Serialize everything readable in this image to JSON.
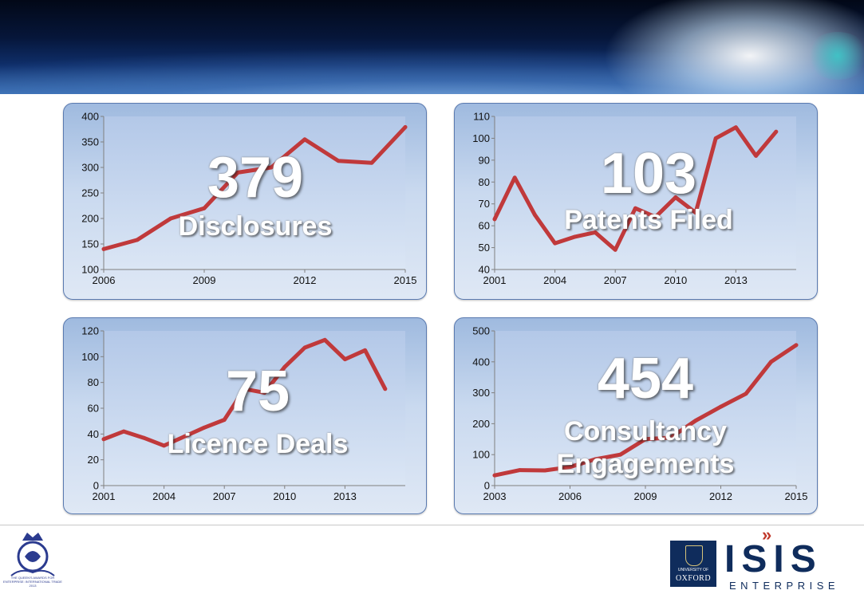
{
  "chart_data": [
    {
      "type": "line",
      "x": [
        2006,
        2007,
        2008,
        2009,
        2010,
        2011,
        2012,
        2013,
        2014,
        2015
      ],
      "values": [
        140,
        158,
        200,
        220,
        290,
        300,
        355,
        313,
        309,
        379
      ],
      "xticks": [
        "2006",
        "2009",
        "2012",
        "2015"
      ],
      "yticks": [
        "100",
        "150",
        "200",
        "250",
        "300",
        "350",
        "400"
      ],
      "ylim": [
        100,
        400
      ],
      "xlim": [
        2006,
        2015
      ],
      "big_number": "379",
      "caption_lines": [
        "Disclosures"
      ],
      "line_color": "#c0393b",
      "grid": false
    },
    {
      "type": "line",
      "x": [
        2001,
        2002,
        2003,
        2004,
        2005,
        2006,
        2007,
        2008,
        2009,
        2010,
        2011,
        2012,
        2013,
        2014,
        2015
      ],
      "values": [
        63,
        82,
        65,
        52,
        55,
        57,
        49,
        68,
        64,
        73,
        66,
        100,
        105,
        92,
        103
      ],
      "xticks": [
        "2001",
        "2004",
        "2007",
        "2010",
        "2013"
      ],
      "yticks": [
        "40",
        "50",
        "60",
        "70",
        "80",
        "90",
        "100",
        "110"
      ],
      "ylim": [
        40,
        110
      ],
      "xlim": [
        2001,
        2016
      ],
      "big_number": "103",
      "caption_lines": [
        "Patents Filed"
      ],
      "line_color": "#c0393b",
      "grid": false
    },
    {
      "type": "line",
      "x": [
        2001,
        2002,
        2003,
        2004,
        2005,
        2006,
        2007,
        2008,
        2009,
        2010,
        2011,
        2012,
        2013,
        2014,
        2015
      ],
      "values": [
        36,
        42,
        37,
        31,
        38,
        45,
        51,
        75,
        72,
        92,
        107,
        113,
        98,
        105,
        75
      ],
      "xticks": [
        "2001",
        "2004",
        "2007",
        "2010",
        "2013"
      ],
      "yticks": [
        "0",
        "20",
        "40",
        "60",
        "80",
        "100",
        "120"
      ],
      "ylim": [
        0,
        120
      ],
      "xlim": [
        2001,
        2016
      ],
      "big_number": "75",
      "caption_lines": [
        "Licence Deals"
      ],
      "line_color": "#c0393b",
      "grid": false
    },
    {
      "type": "line",
      "x": [
        2003,
        2004,
        2005,
        2006,
        2007,
        2008,
        2009,
        2010,
        2011,
        2012,
        2013,
        2014,
        2015
      ],
      "values": [
        33,
        50,
        49,
        60,
        85,
        100,
        150,
        155,
        210,
        255,
        297,
        400,
        454
      ],
      "xticks": [
        "2003",
        "2006",
        "2009",
        "2012",
        "2015"
      ],
      "yticks": [
        "0",
        "100",
        "200",
        "300",
        "400",
        "500"
      ],
      "ylim": [
        0,
        500
      ],
      "xlim": [
        2003,
        2015
      ],
      "big_number": "454",
      "caption_lines": [
        "Consultancy",
        "Engagements"
      ],
      "line_color": "#c0393b",
      "grid": false
    }
  ],
  "footer": {
    "award_text": "THE QUEEN'S AWARDS FOR ENTERPRISE: INTERNATIONAL TRADE 2013",
    "oxford_line1": "UNIVERSITY OF",
    "oxford_line2": "OXFORD",
    "isis_chevron": "»",
    "isis_wordmark": "ISIS",
    "enterprise_wordmark": "ENTERPRISE",
    "brand_color": "#0f2c5c",
    "accent_color": "#c0392b"
  }
}
